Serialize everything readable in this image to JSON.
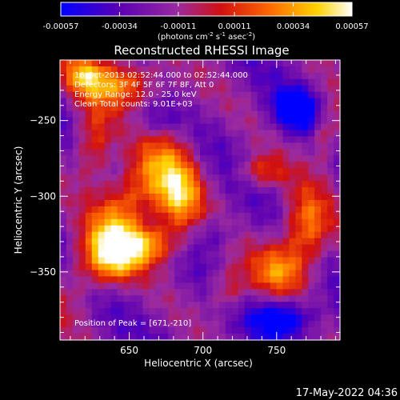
{
  "colorbar": {
    "ticks": [
      "-0.00057",
      "-0.00034",
      "-0.00011",
      "0.00011",
      "0.00034",
      "0.00057"
    ],
    "tick_values": [
      -0.00057,
      -0.00034,
      -0.00011,
      0.00011,
      0.00034,
      0.00057
    ],
    "unit_label": "(photons cm",
    "unit_exp1": "-2",
    "unit_mid": " s",
    "unit_exp2": "-1",
    "unit_end": " asec",
    "unit_exp3": "-2",
    "unit_close": ")",
    "colormap": [
      "#0000ff",
      "#5500aa",
      "#9933aa",
      "#cc2200",
      "#ff6600",
      "#ffcc00",
      "#ffffff"
    ]
  },
  "chart_data": {
    "type": "heatmap",
    "title": "Reconstructed RHESSI Image",
    "xlabel": "Heliocentric X (arcsec)",
    "ylabel": "Heliocentric Y (arcsec)",
    "xlim": [
      603,
      793
    ],
    "ylim": [
      -395,
      -210
    ],
    "x_ticks": [
      650,
      700,
      750
    ],
    "y_ticks": [
      -250,
      -300,
      -350
    ],
    "x_tick_labels": [
      "650",
      "700",
      "750"
    ],
    "y_tick_labels": [
      "−250",
      "−300",
      "−350"
    ],
    "zlim": [
      -0.00057,
      0.00057
    ],
    "peak": [
      671,
      -210
    ],
    "annotations": [
      "16-Oct-2013 02:52:44.000 to 02:52:44.000",
      "Detectors: 3F 4F 5F 6F 7F 8F, Att 0",
      "Energy Range: 12.0 - 25.0 keV",
      "Clean    Total counts: 9.01E+03"
    ],
    "peak_label": "Position of Peak = [671,-210]"
  },
  "timestamp": "17-May-2022 04:36"
}
